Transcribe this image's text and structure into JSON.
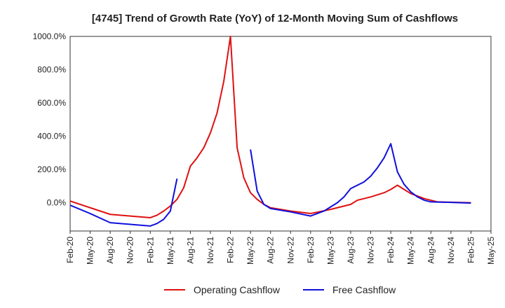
{
  "chart_data": {
    "type": "line",
    "title": "[4745]  Trend of Growth Rate (YoY) of 12-Month Moving Sum of Cashflows",
    "xlabel": "",
    "ylabel": "",
    "ylim": [
      -170,
      1000
    ],
    "y_ticks": [
      0,
      200,
      400,
      600,
      800,
      1000
    ],
    "y_tick_labels": [
      "0.0%",
      "200.0%",
      "400.0%",
      "600.0%",
      "800.0%",
      "1000.0%"
    ],
    "x_ticks": [
      0,
      3,
      6,
      9,
      12,
      15,
      18,
      21,
      24,
      27,
      30,
      33,
      36,
      39,
      42,
      45,
      48,
      51,
      54,
      57,
      60,
      63
    ],
    "x_tick_labels": [
      "Feb-20",
      "May-20",
      "Aug-20",
      "Nov-20",
      "Feb-21",
      "May-21",
      "Aug-21",
      "Nov-21",
      "Feb-22",
      "May-22",
      "Aug-22",
      "Nov-22",
      "Feb-23",
      "May-23",
      "Aug-23",
      "Nov-23",
      "Feb-24",
      "May-24",
      "Aug-24",
      "Nov-24",
      "Feb-25",
      "May-25"
    ],
    "xlim": [
      0,
      63
    ],
    "grid": true,
    "legend_position": "bottom",
    "series": [
      {
        "name": "Operating Cashflow",
        "color": "#e01010",
        "points": [
          [
            0,
            10
          ],
          [
            3,
            -30
          ],
          [
            6,
            -70
          ],
          [
            9,
            -80
          ],
          [
            12,
            -90
          ],
          [
            13,
            -75
          ],
          [
            14,
            -50
          ],
          [
            15,
            -20
          ],
          [
            16,
            20
          ],
          [
            17,
            90
          ],
          [
            18,
            220
          ],
          [
            19,
            270
          ],
          [
            20,
            330
          ],
          [
            21,
            420
          ],
          [
            22,
            540
          ],
          [
            23,
            730
          ],
          [
            24,
            1000
          ],
          [
            25,
            330
          ],
          [
            26,
            150
          ],
          [
            27,
            60
          ],
          [
            28,
            20
          ],
          [
            29,
            -10
          ],
          [
            30,
            -30
          ],
          [
            33,
            -50
          ],
          [
            36,
            -65
          ],
          [
            39,
            -40
          ],
          [
            42,
            -10
          ],
          [
            43,
            15
          ],
          [
            45,
            35
          ],
          [
            47,
            60
          ],
          [
            48,
            80
          ],
          [
            49,
            105
          ],
          [
            50,
            80
          ],
          [
            51,
            55
          ],
          [
            52,
            40
          ],
          [
            53,
            25
          ],
          [
            54,
            15
          ],
          [
            55,
            5
          ],
          [
            57,
            3
          ],
          [
            60,
            0
          ]
        ]
      },
      {
        "name": "Free Cashflow",
        "color": "#1010dd",
        "points": [
          [
            0,
            -15
          ],
          [
            3,
            -65
          ],
          [
            6,
            -120
          ],
          [
            9,
            -130
          ],
          [
            12,
            -140
          ],
          [
            13,
            -125
          ],
          [
            14,
            -100
          ],
          [
            15,
            -50
          ],
          [
            16,
            145
          ],
          [
            null,
            null
          ],
          [
            27,
            320
          ],
          [
            28,
            70
          ],
          [
            29,
            -10
          ],
          [
            30,
            -35
          ],
          [
            33,
            -55
          ],
          [
            36,
            -80
          ],
          [
            38,
            -50
          ],
          [
            40,
            0
          ],
          [
            41,
            35
          ],
          [
            42,
            85
          ],
          [
            44,
            125
          ],
          [
            45,
            160
          ],
          [
            46,
            210
          ],
          [
            47,
            270
          ],
          [
            48,
            355
          ],
          [
            49,
            185
          ],
          [
            50,
            110
          ],
          [
            51,
            65
          ],
          [
            52,
            35
          ],
          [
            53,
            15
          ],
          [
            54,
            5
          ],
          [
            57,
            2
          ],
          [
            60,
            -2
          ]
        ]
      }
    ]
  }
}
